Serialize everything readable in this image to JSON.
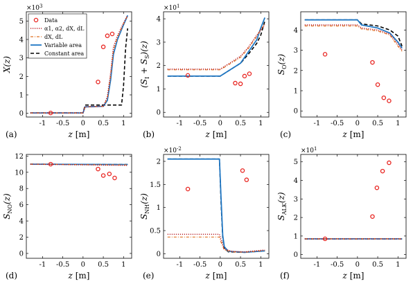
{
  "chart_data": [
    {
      "type": "line",
      "panel_label": "(a)",
      "xlabel": "z [m]",
      "ylabel": "X(z)",
      "multiplier": "×10^3",
      "xlim": [
        -1.4,
        1.2
      ],
      "ylim": [
        -0.2,
        5.5
      ],
      "xticks": [
        "-1",
        "-0.5",
        "0",
        "0.5",
        "1"
      ],
      "yticks": [
        "0",
        "1",
        "2",
        "3",
        "4",
        "5"
      ],
      "legend": [
        "Data",
        "α1, α2, dX, dL",
        "dX, dL",
        "Variable area",
        "Constant area"
      ],
      "series": [
        {
          "name": "Data",
          "x": [
            -0.8,
            0.37,
            0.5,
            0.6,
            0.72
          ],
          "y": [
            0.02,
            1.7,
            3.6,
            4.2,
            4.3
          ]
        },
        {
          "name": "α1, α2, dX, dL",
          "x": [
            -1.3,
            0,
            0.05,
            0.5,
            0.6,
            0.68,
            0.75,
            0.85,
            1.0,
            1.1
          ],
          "y": [
            0.02,
            0.02,
            0.35,
            0.38,
            0.9,
            2.2,
            3.6,
            4.2,
            4.9,
            5.3
          ]
        },
        {
          "name": "dX, dL",
          "x": [
            -1.3,
            0,
            0.05,
            0.5,
            0.6,
            0.68,
            0.75,
            0.85,
            1.0,
            1.1
          ],
          "y": [
            0.02,
            0.02,
            0.35,
            0.38,
            0.8,
            2.0,
            3.4,
            4.1,
            4.85,
            5.3
          ]
        },
        {
          "name": "Variable area",
          "x": [
            -1.3,
            0,
            0.05,
            0.5,
            0.6,
            0.68,
            0.75,
            0.85,
            1.0,
            1.1
          ],
          "y": [
            0.02,
            0.02,
            0.35,
            0.38,
            0.7,
            1.8,
            3.2,
            4.0,
            4.8,
            5.3
          ]
        },
        {
          "name": "Constant area",
          "x": [
            -1.3,
            0,
            0.05,
            0.95,
            1.0,
            1.05,
            1.1
          ],
          "y": [
            0.02,
            0.02,
            0.45,
            0.45,
            1.5,
            3.5,
            4.6
          ]
        }
      ]
    },
    {
      "type": "line",
      "panel_label": "(b)",
      "xlabel": "z [m]",
      "ylabel": "(SI + SS)(z)",
      "multiplier": "×10^1",
      "xlim": [
        -1.4,
        1.2
      ],
      "ylim": [
        -0.2,
        4.3
      ],
      "xticks": [
        "-1",
        "-0.5",
        "0",
        "0.5",
        "1"
      ],
      "yticks": [
        "0",
        "1",
        "2",
        "3",
        "4"
      ],
      "series": [
        {
          "name": "Data",
          "x": [
            -0.8,
            0.37,
            0.5,
            0.6,
            0.72
          ],
          "y": [
            1.58,
            1.25,
            1.22,
            1.55,
            1.65
          ]
        },
        {
          "name": "α1, α2, dX, dL",
          "x": [
            -1.3,
            0,
            0.5,
            0.7,
            0.9,
            1.1
          ],
          "y": [
            1.85,
            1.85,
            2.4,
            2.8,
            3.3,
            3.75
          ]
        },
        {
          "name": "dX, dL",
          "x": [
            -1.3,
            0,
            0.5,
            0.7,
            0.9,
            1.1
          ],
          "y": [
            1.82,
            1.82,
            2.35,
            2.75,
            3.25,
            3.8
          ]
        },
        {
          "name": "Variable area",
          "x": [
            -1.3,
            0,
            0.5,
            0.7,
            0.9,
            1.0,
            1.1
          ],
          "y": [
            1.55,
            1.55,
            2.1,
            2.6,
            3.1,
            3.6,
            4.05
          ]
        },
        {
          "name": "Constant area",
          "x": [
            -1.3,
            0,
            0.5,
            0.7,
            0.9,
            1.0,
            1.1
          ],
          "y": [
            1.55,
            1.55,
            2.1,
            2.5,
            2.95,
            3.3,
            3.9
          ]
        }
      ]
    },
    {
      "type": "line",
      "panel_label": "(c)",
      "xlabel": "z [m]",
      "ylabel": "SO(z)",
      "multiplier": "",
      "xlim": [
        -1.4,
        1.2
      ],
      "ylim": [
        -0.3,
        4.9
      ],
      "xticks": [
        "-1",
        "-0.5",
        "0",
        "0.5",
        "1"
      ],
      "yticks": [
        "0",
        "1",
        "2",
        "3",
        "4"
      ],
      "series": [
        {
          "name": "Data",
          "x": [
            -0.8,
            0.37,
            0.5,
            0.65,
            0.78
          ],
          "y": [
            2.8,
            2.4,
            1.3,
            0.65,
            0.5
          ]
        },
        {
          "name": "α1, α2, dX, dL",
          "x": [
            -1.3,
            0,
            0.1,
            0.5,
            0.8,
            1.0,
            1.1
          ],
          "y": [
            4.25,
            4.25,
            4.1,
            4.0,
            3.8,
            3.3,
            3.0
          ]
        },
        {
          "name": "dX, dL",
          "x": [
            -1.3,
            0,
            0.1,
            0.5,
            0.8,
            1.0,
            1.1
          ],
          "y": [
            4.2,
            4.2,
            4.05,
            3.95,
            3.75,
            3.2,
            2.95
          ]
        },
        {
          "name": "Variable area",
          "x": [
            -1.3,
            0,
            0.1,
            0.5,
            0.8,
            1.0,
            1.1
          ],
          "y": [
            4.5,
            4.5,
            4.25,
            4.1,
            3.85,
            3.4,
            3.1
          ]
        },
        {
          "name": "Constant area",
          "x": [
            -1.3,
            0,
            0.1,
            0.5,
            0.8,
            1.0,
            1.1
          ],
          "y": [
            4.5,
            4.5,
            4.3,
            4.2,
            4.0,
            3.7,
            3.2
          ]
        }
      ]
    },
    {
      "type": "line",
      "panel_label": "(d)",
      "xlabel": "z [m]",
      "ylabel": "SNO(z)",
      "multiplier": "",
      "xlim": [
        -1.4,
        1.2
      ],
      "ylim": [
        -0.6,
        12.2
      ],
      "xticks": [
        "-1",
        "-0.5",
        "0",
        "0.5",
        "1"
      ],
      "yticks": [
        "0",
        "2",
        "4",
        "6",
        "8",
        "10",
        "12"
      ],
      "series": [
        {
          "name": "Data",
          "x": [
            -0.8,
            0.37,
            0.5,
            0.65,
            0.78
          ],
          "y": [
            11.0,
            10.4,
            9.6,
            9.8,
            9.3
          ]
        },
        {
          "name": "α1, α2, dX, dL",
          "x": [
            -1.3,
            1.1
          ],
          "y": [
            11.0,
            10.85
          ]
        },
        {
          "name": "dX, dL",
          "x": [
            -1.3,
            1.1
          ],
          "y": [
            11.0,
            10.9
          ]
        },
        {
          "name": "Variable area",
          "x": [
            -1.3,
            1.1
          ],
          "y": [
            11.0,
            10.95
          ]
        },
        {
          "name": "Constant area",
          "x": [
            -1.3,
            1.1
          ],
          "y": [
            11.0,
            10.95
          ]
        }
      ]
    },
    {
      "type": "line",
      "panel_label": "(e)",
      "xlabel": "z [m]",
      "ylabel": "SNH(z)",
      "multiplier": "×10^-2",
      "xlim": [
        -1.4,
        1.2
      ],
      "ylim": [
        -0.1,
        2.15
      ],
      "xticks": [
        "-1",
        "-0.5",
        "0",
        "0.5",
        "1"
      ],
      "yticks": [
        "0",
        "0.5",
        "1",
        "1.5",
        "2"
      ],
      "series": [
        {
          "name": "Data",
          "x": [
            -0.8,
            0.55,
            0.65
          ],
          "y": [
            1.4,
            1.8,
            1.6
          ]
        },
        {
          "name": "α1, α2, dX, dL",
          "x": [
            -1.3,
            -0.02,
            0.02,
            0.1,
            0.3,
            0.6,
            1.1
          ],
          "y": [
            0.42,
            0.42,
            0.3,
            0.1,
            0.05,
            0.04,
            0.08
          ]
        },
        {
          "name": "dX, dL",
          "x": [
            -1.3,
            -0.02,
            0.02,
            0.1,
            0.3,
            0.6,
            1.1
          ],
          "y": [
            0.36,
            0.36,
            0.25,
            0.08,
            0.04,
            0.03,
            0.07
          ]
        },
        {
          "name": "Variable area",
          "x": [
            -1.3,
            -0.02,
            0.02,
            0.06,
            0.1,
            0.2,
            0.6,
            1.1
          ],
          "y": [
            2.05,
            2.05,
            1.2,
            0.4,
            0.15,
            0.05,
            0.03,
            0.06
          ]
        },
        {
          "name": "Constant area",
          "x": [
            -1.3,
            -0.02,
            0.02,
            0.06,
            0.1,
            0.2,
            0.6,
            1.1
          ],
          "y": [
            2.05,
            2.05,
            1.1,
            0.35,
            0.12,
            0.04,
            0.03,
            0.06
          ]
        }
      ]
    },
    {
      "type": "line",
      "panel_label": "(f)",
      "xlabel": "z [m]",
      "ylabel": "SALK(z)",
      "multiplier": "×10^1",
      "xlim": [
        -1.4,
        1.2
      ],
      "ylim": [
        -0.2,
        5.4
      ],
      "xticks": [
        "-1",
        "-0.5",
        "0",
        "0.5",
        "1"
      ],
      "yticks": [
        "0",
        "1",
        "2",
        "3",
        "4",
        "5"
      ],
      "series": [
        {
          "name": "Data",
          "x": [
            -0.8,
            0.37,
            0.48,
            0.62,
            0.78
          ],
          "y": [
            0.85,
            2.05,
            3.6,
            4.5,
            4.95
          ]
        },
        {
          "name": "α1, α2, dX, dL",
          "x": [
            -1.3,
            1.1
          ],
          "y": [
            0.85,
            0.85
          ]
        },
        {
          "name": "dX, dL",
          "x": [
            -1.3,
            1.1
          ],
          "y": [
            0.85,
            0.85
          ]
        },
        {
          "name": "Variable area",
          "x": [
            -1.3,
            1.1
          ],
          "y": [
            0.85,
            0.85
          ]
        },
        {
          "name": "Constant area",
          "x": [
            -1.3,
            1.1
          ],
          "y": [
            0.85,
            0.85
          ]
        }
      ]
    }
  ],
  "style": {
    "data_color": "#e8231f",
    "alpha_color": "#b5121b",
    "dxdl_color": "#e07020",
    "variable_color": "#1f77c4",
    "constant_color": "#000000"
  }
}
